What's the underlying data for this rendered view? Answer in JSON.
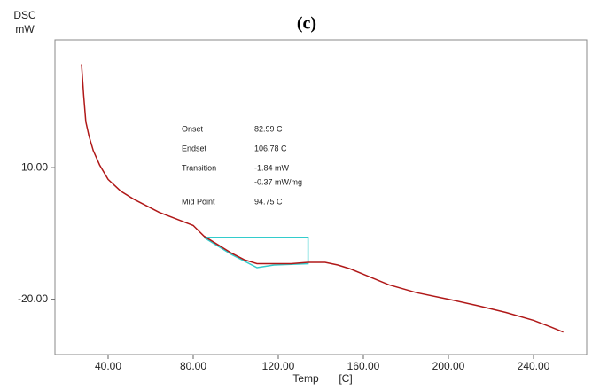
{
  "chart_data": {
    "type": "line",
    "title": "(c)",
    "y_label_lines": [
      "DSC",
      "mW"
    ],
    "x_label_lines": [
      "Temp",
      "[C]"
    ],
    "x": [
      27.5,
      28.5,
      29.5,
      31,
      33,
      36,
      40,
      46,
      52,
      64,
      80,
      85,
      92,
      98,
      104,
      110,
      118,
      126,
      134,
      142,
      148,
      154,
      160,
      172,
      185,
      200,
      214,
      227,
      240,
      248,
      254
    ],
    "series": [
      {
        "color": "#b01818",
        "values": [
          -2.15,
          -4.5,
          -6.5,
          -7.6,
          -8.7,
          -9.8,
          -10.9,
          -11.8,
          -12.4,
          -13.4,
          -14.4,
          -15.2,
          -15.9,
          -16.5,
          -17.0,
          -17.3,
          -17.3,
          -17.3,
          -17.2,
          -17.2,
          -17.4,
          -17.7,
          -18.1,
          -18.9,
          -19.5,
          -20.0,
          -20.5,
          -21.0,
          -21.6,
          -22.1,
          -22.5
        ]
      }
    ],
    "analysis": {
      "color": "#33cccc",
      "x": [
        85,
        134,
        134,
        118,
        110,
        98,
        85
      ],
      "values": [
        -15.3,
        -15.3,
        -17.3,
        -17.4,
        -17.6,
        -16.6,
        -15.3
      ]
    },
    "annotations": [
      {
        "label": "Onset",
        "text": [
          "82.99  C"
        ]
      },
      {
        "label": "Endset",
        "text": [
          "106.78  C"
        ]
      },
      {
        "label": "Transition",
        "text": [
          "-1.84  mW",
          "-0.37  mW/mg"
        ]
      },
      {
        "label": "Mid Point",
        "text": [
          "94.75  C"
        ]
      }
    ],
    "xlim": [
      15,
      265
    ],
    "ylim": [
      -24.2,
      -0.3
    ],
    "xticks": [
      {
        "value": 40,
        "label": "40.00"
      },
      {
        "value": 80,
        "label": "80.00"
      },
      {
        "value": 120,
        "label": "120.00"
      },
      {
        "value": 160,
        "label": "160.00"
      },
      {
        "value": 200,
        "label": "200.00"
      },
      {
        "value": 240,
        "label": "240.00"
      }
    ],
    "yticks": [
      {
        "value": -10,
        "label": "-10.00"
      },
      {
        "value": -20,
        "label": "-20.00"
      }
    ]
  }
}
